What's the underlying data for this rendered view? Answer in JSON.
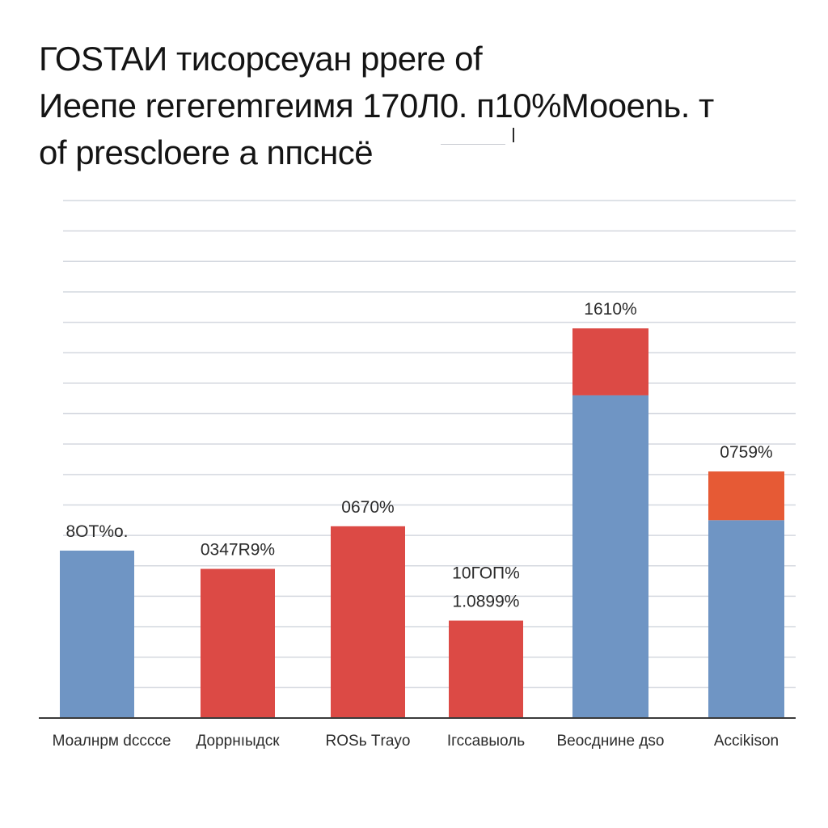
{
  "chart_data": {
    "type": "bar",
    "title_lines": [
      "ГОSTAИ тисорсеуан ppere of",
      "Иеепе reгeгemгeимя 170Л0. п10%Мооеnь. т",
      "of presclоere  а nпcнcё"
    ],
    "xlabel": "",
    "ylabel": "",
    "ylim": [
      0,
      17
    ],
    "grid": true,
    "legend": "none",
    "categories": [
      "Моалнрм dcccce",
      "Дорpнıыдск",
      "RОЅь Тrаyо",
      "Ӏгссавыоль",
      "Вeocднинe дsо",
      "Acсikison"
    ],
    "series": [
      {
        "color": "#6f95c4",
        "values": [
          5.5,
          0,
          0,
          0,
          10.6,
          6.5
        ]
      },
      {
        "color": "#dc4a45",
        "values": [
          0,
          4.9,
          6.3,
          3.2,
          2.2,
          1.6
        ]
      }
    ],
    "segment_colors": [
      [
        "#6f95c4",
        "#dc4a45"
      ],
      [
        "#6f95c4",
        "#dc4a45"
      ],
      [
        "#6f95c4",
        "#dc4a45"
      ],
      [
        "#6f95c4",
        "#dc4a45"
      ],
      [
        "#6f95c4",
        "#dc4a45"
      ],
      [
        "#6f95c4",
        "#e65a35"
      ]
    ],
    "data_labels": [
      [
        "8ОТ%о."
      ],
      [
        "0347R9%"
      ],
      [
        "0670%"
      ],
      [
        "10ГОП%",
        "1.0899%"
      ],
      [
        "1610%"
      ],
      [
        "0759%"
      ]
    ]
  }
}
